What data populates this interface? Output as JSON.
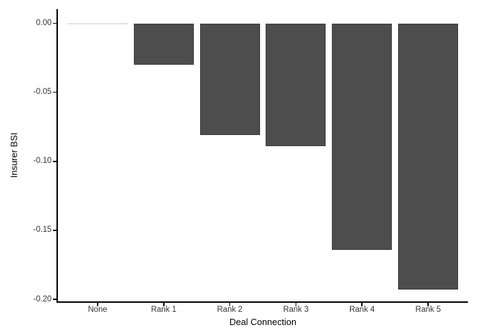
{
  "figure": {
    "background_color": "#FFFFFF"
  },
  "chart_data": {
    "type": "bar",
    "title": "",
    "xlabel": "Deal Connection",
    "ylabel": "Insurer BSI",
    "categories": [
      "None",
      "Rank 1",
      "Rank 2",
      "Rank 3",
      "Rank 4",
      "Rank 5"
    ],
    "values": [
      0.0,
      -0.03,
      -0.081,
      -0.089,
      -0.164,
      -0.193
    ],
    "ylim": [
      -0.2,
      0.0
    ],
    "yticks": [
      0.0,
      -0.05,
      -0.1,
      -0.15,
      -0.2
    ],
    "ytick_labels": [
      "0.00",
      "-0.05",
      "-0.10",
      "-0.15",
      "-0.20"
    ],
    "grid": false,
    "legend": null,
    "orientation": "vertical",
    "style": {
      "bar_fill_color": "#4D4D4D",
      "bar_border_color": "#3C3C3C",
      "zero_bar_line_color": "#E2E2E2",
      "axis_line_color": "#000000",
      "tick_text_color": "#333333",
      "axis_title_color": "#000000"
    }
  }
}
